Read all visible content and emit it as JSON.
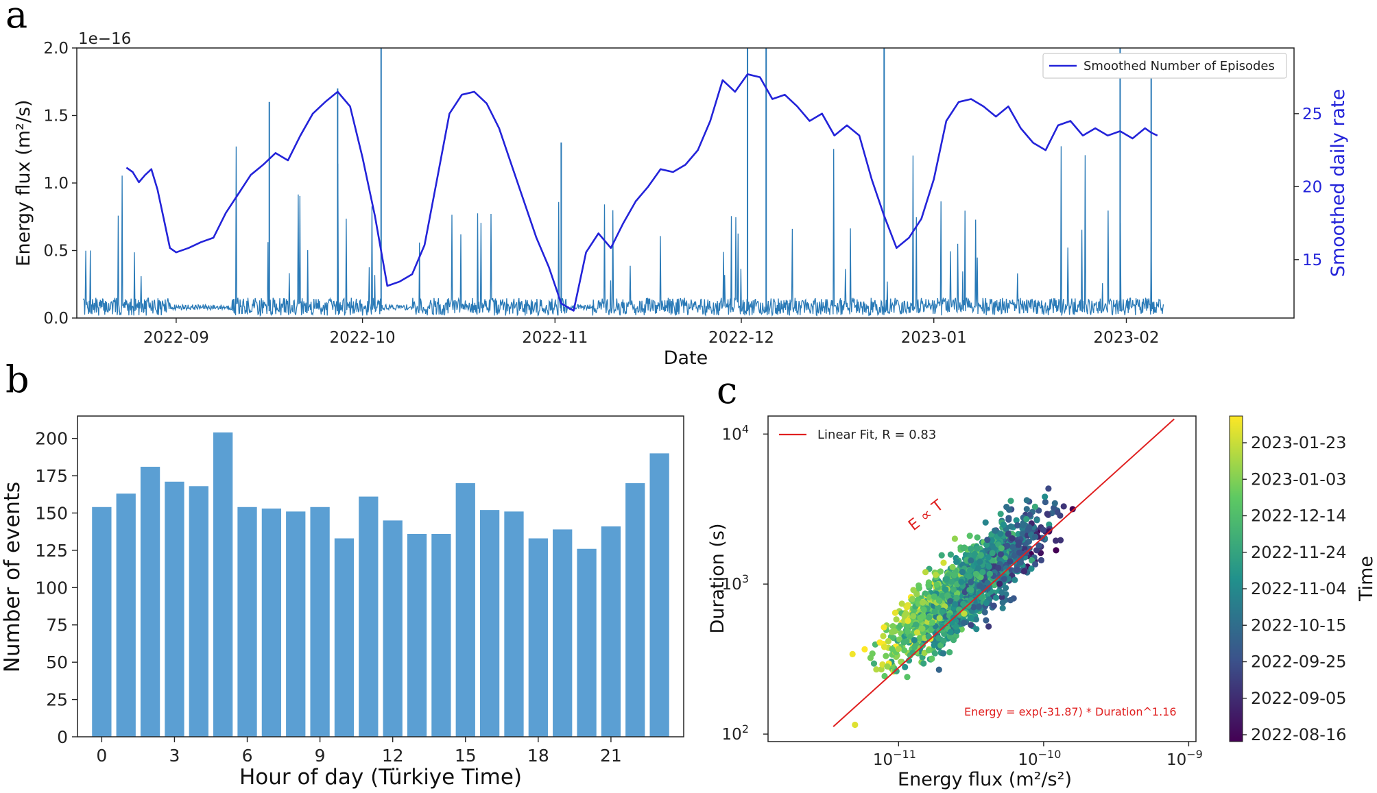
{
  "panels": {
    "a": "a",
    "b": "b",
    "c": "c"
  },
  "colors": {
    "flux": "#2a7ab7",
    "smoothed": "#2323d9",
    "bars": "#5b9fd3",
    "fit": "#e02020",
    "viridis": [
      "#440154",
      "#3b528b",
      "#21918c",
      "#5ec962",
      "#fde725"
    ]
  },
  "chart_data": [
    {
      "id": "a",
      "type": "line",
      "title": "",
      "xlabel": "Date",
      "ylabel": "Energy flux (m²/s)",
      "ylabel_right": "Smoothed daily rate",
      "y_offset_label": "1e−16",
      "ylim": [
        0.0,
        2.0
      ],
      "ylim_right": [
        11,
        29.5
      ],
      "yticks": [
        "0.0",
        "0.5",
        "1.0",
        "1.5",
        "2.0"
      ],
      "yticks_right": [
        15,
        20,
        25
      ],
      "xlim_days": [
        -16,
        180
      ],
      "xticks": [
        {
          "day": 0,
          "label": "2022-09"
        },
        {
          "day": 30,
          "label": "2022-10"
        },
        {
          "day": 61,
          "label": "2022-11"
        },
        {
          "day": 91,
          "label": "2022-12"
        },
        {
          "day": 122,
          "label": "2023-01"
        },
        {
          "day": 153,
          "label": "2023-02"
        }
      ],
      "legend": "Smoothed Number of Episodes",
      "series": [
        {
          "name": "Smoothed Number of Episodes",
          "axis": "right",
          "x_days": [
            -8,
            -7,
            -6,
            -5,
            -4,
            -3,
            -2,
            -1,
            0,
            2,
            4,
            6,
            8,
            10,
            12,
            14,
            16,
            18,
            20,
            22,
            24,
            26,
            28,
            30,
            32,
            34,
            36,
            38,
            40,
            42,
            44,
            46,
            48,
            50,
            52,
            54,
            56,
            58,
            60,
            62,
            64,
            66,
            68,
            70,
            72,
            74,
            76,
            78,
            80,
            82,
            84,
            86,
            88,
            90,
            92,
            94,
            96,
            98,
            100,
            102,
            104,
            106,
            108,
            110,
            112,
            114,
            116,
            118,
            120,
            122,
            124,
            126,
            128,
            130,
            132,
            134,
            136,
            138,
            140,
            142,
            144,
            146,
            148,
            150,
            152,
            154,
            156,
            157,
            158
          ],
          "values": [
            21.3,
            21.0,
            20.3,
            20.8,
            21.2,
            19.8,
            17.8,
            15.8,
            15.5,
            15.8,
            16.2,
            16.5,
            18.2,
            19.5,
            20.8,
            21.5,
            22.3,
            21.8,
            23.5,
            25.0,
            25.8,
            26.5,
            25.5,
            22.0,
            18.0,
            13.2,
            13.5,
            14.0,
            16.0,
            20.5,
            25.0,
            26.3,
            26.5,
            25.7,
            24.0,
            21.5,
            19.0,
            16.5,
            14.5,
            12.0,
            11.5,
            15.5,
            16.8,
            15.8,
            17.5,
            19.0,
            20.0,
            21.2,
            21.0,
            21.5,
            22.5,
            24.5,
            27.3,
            26.5,
            27.7,
            27.5,
            26.0,
            26.3,
            25.5,
            24.5,
            25.0,
            23.5,
            24.2,
            23.5,
            20.5,
            18.0,
            15.8,
            16.5,
            17.8,
            20.5,
            24.5,
            25.8,
            26.0,
            25.5,
            24.8,
            25.5,
            24.0,
            23.0,
            22.5,
            24.2,
            24.5,
            23.5,
            24.0,
            23.5,
            23.8,
            23.3,
            24.0,
            23.7,
            23.5
          ]
        }
      ],
      "flux_noise": {
        "axis": "left",
        "baseline": 0.12,
        "gap_days": [
          [
            -1,
            9
          ],
          [
            33,
            38
          ],
          [
            63,
            67
          ]
        ],
        "notable_spikes": [
          [
            33,
            2.0
          ],
          [
            62,
            1.3
          ],
          [
            92,
            2.0
          ],
          [
            95,
            2.0
          ],
          [
            114,
            2.0
          ],
          [
            152,
            2.0
          ],
          [
            26,
            1.7
          ],
          [
            15,
            1.6
          ],
          [
            157,
            1.8
          ]
        ]
      }
    },
    {
      "id": "b",
      "type": "bar",
      "title": "",
      "xlabel": "Hour of day (Türkiye Time)",
      "ylabel": "Number of events",
      "categories": [
        0,
        1,
        2,
        3,
        4,
        5,
        6,
        7,
        8,
        9,
        10,
        11,
        12,
        13,
        14,
        15,
        16,
        17,
        18,
        19,
        20,
        21,
        22,
        23
      ],
      "values": [
        154,
        163,
        181,
        171,
        168,
        204,
        154,
        153,
        151,
        154,
        133,
        161,
        145,
        136,
        136,
        170,
        152,
        151,
        133,
        139,
        126,
        141,
        170,
        190
      ],
      "ylim": [
        0,
        215
      ],
      "xlim": [
        -1,
        24
      ],
      "yticks": [
        0,
        25,
        50,
        75,
        100,
        125,
        150,
        175,
        200
      ],
      "xticks": [
        0,
        3,
        6,
        9,
        12,
        15,
        18,
        21
      ]
    },
    {
      "id": "c",
      "type": "scatter",
      "title": "",
      "xlabel": "Energy flux (m²/s²)",
      "ylabel": "Duration (s)",
      "xscale": "log",
      "yscale": "log",
      "xlim_log10": [
        -11.9,
        -8.95
      ],
      "ylim_log10": [
        1.95,
        4.12
      ],
      "xticks_log10": [
        -11,
        -10,
        -9
      ],
      "yticks_log10": [
        2,
        3,
        4
      ],
      "legend": "Linear Fit, R = 0.83",
      "fit_equation": "Energy = exp(-31.87) * Duration^1.16",
      "annotation": "E ∝ T",
      "fit_line_log10": {
        "x": [
          -11.45,
          -9.1
        ],
        "y": [
          2.05,
          4.1
        ]
      },
      "colorbar_label": "Time",
      "colorbar_ticks": [
        "2023-01-23",
        "2023-01-03",
        "2022-12-14",
        "2022-11-24",
        "2022-11-04",
        "2022-10-15",
        "2022-09-25",
        "2022-09-05",
        "2022-08-16"
      ],
      "cloud": {
        "n_points": 1600,
        "center_log10": [
          -10.55,
          2.95
        ],
        "slope": 0.86,
        "spread_log10": 0.2
      }
    }
  ]
}
